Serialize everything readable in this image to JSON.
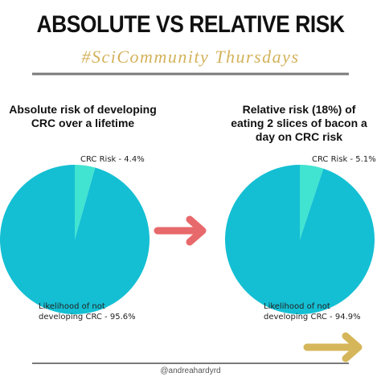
{
  "header": {
    "title": "ABSOLUTE VS RELATIVE RISK",
    "subtitle": "#SciCommunity Thursdays"
  },
  "chart_data": [
    {
      "type": "pie",
      "title": "Absolute risk of developing CRC over a lifetime",
      "values": [
        4.4,
        95.6
      ],
      "value_labels": [
        "CRC Risk - 4.4%",
        "Likelihood of not developing CRC - 95.6%"
      ],
      "colors": [
        "#41e3d1",
        "#14bfd3"
      ]
    },
    {
      "type": "pie",
      "title": "Relative risk (18%) of eating 2 slices of bacon a day on CRC risk",
      "values": [
        5.1,
        94.9
      ],
      "value_labels": [
        "CRC Risk - 5.1%",
        "Likelihood of not developing CRC - 94.9%"
      ],
      "colors": [
        "#41e3d1",
        "#14bfd3"
      ]
    }
  ],
  "footer": {
    "credit": "@andreahardyrd"
  }
}
